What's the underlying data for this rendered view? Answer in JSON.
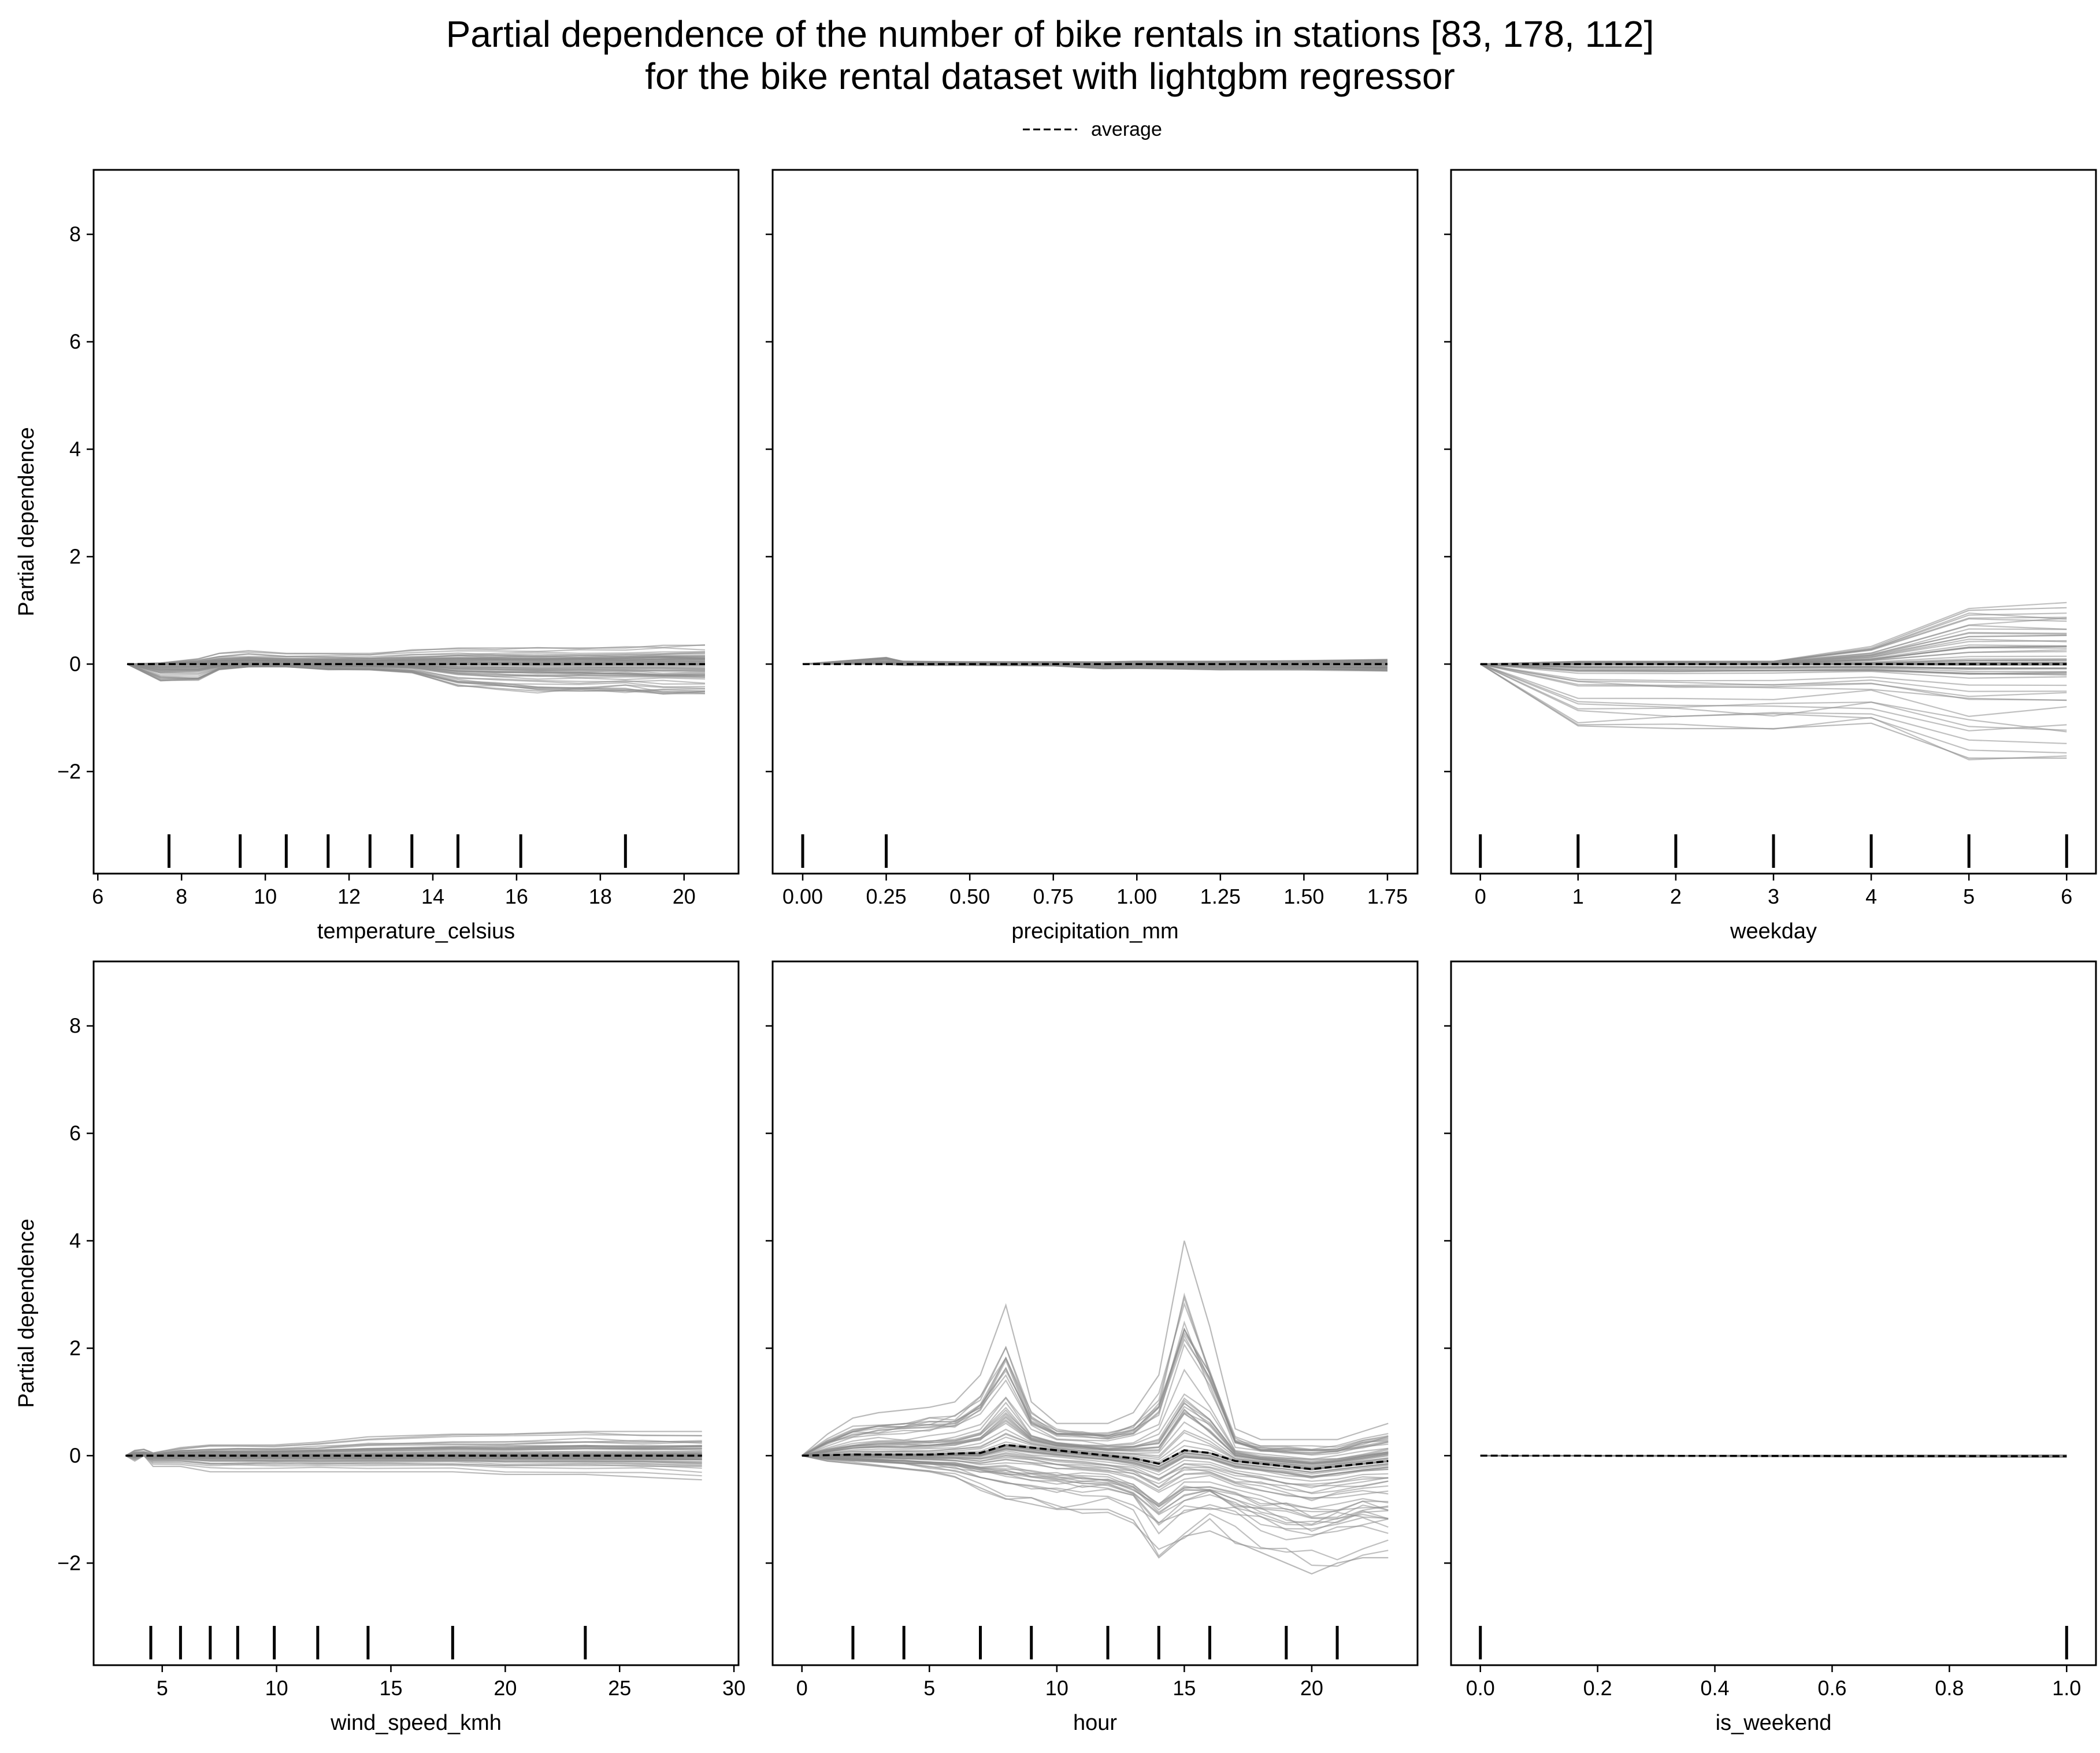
{
  "figure": {
    "title_line1": "Partial dependence of the number of bike rentals in stations [83, 178, 112]",
    "title_line2": "for the bike rental dataset with lightgbm regressor",
    "legend_label": "average"
  },
  "colors": {
    "ice_lines": "#8c8c8c",
    "average_line": "#000000",
    "axes": "#000000",
    "background": "#ffffff"
  },
  "chart_data": [
    {
      "type": "line",
      "xlabel": "temperature_celsius",
      "ylabel": "Partial dependence",
      "xlim": [
        5.9,
        21.3
      ],
      "ylim": [
        -3.9,
        9.2
      ],
      "xticks": [
        6,
        8,
        10,
        12,
        14,
        16,
        18,
        20
      ],
      "xtick_labels": [
        "6",
        "8",
        "10",
        "12",
        "14",
        "16",
        "18",
        "20"
      ],
      "yticks": [
        -2,
        0,
        2,
        4,
        6,
        8
      ],
      "ytick_labels": [
        "−2",
        "0",
        "2",
        "4",
        "6",
        "8"
      ],
      "show_yticklabels": true,
      "deciles": [
        7.7,
        9.4,
        10.5,
        11.5,
        12.5,
        13.5,
        14.6,
        16.1,
        18.6
      ],
      "x": [
        6.7,
        7.5,
        8.4,
        8.9,
        9.6,
        10.5,
        11.5,
        12.5,
        13.5,
        14.6,
        15.5,
        16.5,
        17.5,
        18.6,
        19.5,
        20.5
      ],
      "average": [
        0,
        0,
        0,
        0,
        0,
        0,
        0,
        0,
        0,
        0,
        0,
        0,
        0,
        0,
        0,
        0
      ],
      "ice_envelope_low": [
        0,
        -0.3,
        -0.3,
        -0.1,
        -0.05,
        -0.05,
        -0.1,
        -0.1,
        -0.15,
        -0.4,
        -0.45,
        -0.5,
        -0.5,
        -0.5,
        -0.55,
        -0.55
      ],
      "ice_envelope_high": [
        0,
        0.02,
        0.1,
        0.2,
        0.25,
        0.2,
        0.2,
        0.2,
        0.25,
        0.3,
        0.3,
        0.3,
        0.3,
        0.3,
        0.35,
        0.35
      ]
    },
    {
      "type": "line",
      "xlabel": "precipitation_mm",
      "ylabel": "",
      "xlim": [
        -0.09,
        1.84
      ],
      "ylim": [
        -3.9,
        9.2
      ],
      "xticks": [
        0,
        0.25,
        0.5,
        0.75,
        1.0,
        1.25,
        1.5,
        1.75
      ],
      "xtick_labels": [
        "0.00",
        "0.25",
        "0.50",
        "0.75",
        "1.00",
        "1.25",
        "1.50",
        "1.75"
      ],
      "yticks": [
        -2,
        0,
        2,
        4,
        6,
        8
      ],
      "ytick_labels": [
        "−2",
        "0",
        "2",
        "4",
        "6",
        "8"
      ],
      "show_yticklabels": false,
      "deciles": [
        0.0,
        0.25
      ],
      "x": [
        0,
        0.25,
        0.3,
        0.5,
        0.75,
        0.9,
        1.0,
        1.25,
        1.5,
        1.75
      ],
      "average": [
        0,
        0,
        0,
        0,
        0,
        0,
        0,
        0,
        0,
        0
      ],
      "ice_envelope_low": [
        0,
        0,
        -0.02,
        -0.02,
        -0.03,
        -0.08,
        -0.08,
        -0.1,
        -0.1,
        -0.12
      ],
      "ice_envelope_high": [
        0,
        0.12,
        0.05,
        0.04,
        0.04,
        0.04,
        0.05,
        0.05,
        0.06,
        0.08
      ]
    },
    {
      "type": "line",
      "xlabel": "weekday",
      "ylabel": "",
      "xlim": [
        -0.3,
        6.3
      ],
      "ylim": [
        -3.9,
        9.2
      ],
      "xticks": [
        0,
        1,
        2,
        3,
        4,
        5,
        6
      ],
      "xtick_labels": [
        "0",
        "1",
        "2",
        "3",
        "4",
        "5",
        "6"
      ],
      "yticks": [
        -2,
        0,
        2,
        4,
        6,
        8
      ],
      "ytick_labels": [
        "−2",
        "0",
        "2",
        "4",
        "6",
        "8"
      ],
      "show_yticklabels": false,
      "deciles": [
        0,
        1,
        2,
        3,
        4,
        5,
        6
      ],
      "x": [
        0,
        1,
        2,
        3,
        4,
        5,
        6
      ],
      "average": [
        0,
        0,
        0,
        0,
        0,
        0,
        0
      ],
      "ice_envelope_low": [
        0,
        -1.15,
        -1.2,
        -1.2,
        -1.1,
        -1.75,
        -1.75
      ],
      "ice_envelope_high": [
        0,
        0.05,
        0.05,
        0.05,
        0.3,
        1.0,
        1.05
      ]
    },
    {
      "type": "line",
      "xlabel": "wind_speed_kmh",
      "ylabel": "Partial dependence",
      "xlim": [
        2.0,
        30.2
      ],
      "ylim": [
        -3.9,
        9.2
      ],
      "xticks": [
        5,
        10,
        15,
        20,
        25,
        30
      ],
      "xtick_labels": [
        "5",
        "10",
        "15",
        "20",
        "25",
        "30"
      ],
      "yticks": [
        -2,
        0,
        2,
        4,
        6,
        8
      ],
      "ytick_labels": [
        "−2",
        "0",
        "2",
        "4",
        "6",
        "8"
      ],
      "show_yticklabels": true,
      "deciles": [
        4.5,
        5.8,
        7.1,
        8.3,
        9.9,
        11.8,
        14.0,
        17.7,
        23.5
      ],
      "x": [
        3.4,
        3.8,
        4.2,
        4.6,
        5.8,
        7.1,
        8.3,
        9.9,
        11.8,
        14.0,
        17.7,
        20.0,
        23.5,
        26.0,
        28.6
      ],
      "average": [
        0,
        0,
        0,
        0,
        0,
        0,
        0,
        0,
        0,
        0,
        0,
        0,
        0,
        0,
        0
      ],
      "ice_envelope_low": [
        0,
        -0.1,
        0,
        -0.2,
        -0.2,
        -0.3,
        -0.3,
        -0.3,
        -0.3,
        -0.3,
        -0.3,
        -0.35,
        -0.35,
        -0.4,
        -0.45
      ],
      "ice_envelope_high": [
        0,
        0.1,
        0.12,
        0.05,
        0.15,
        0.2,
        0.2,
        0.2,
        0.25,
        0.35,
        0.4,
        0.4,
        0.45,
        0.45,
        0.45
      ]
    },
    {
      "type": "line",
      "xlabel": "hour",
      "ylabel": "",
      "xlim": [
        -1.15,
        24.15
      ],
      "ylim": [
        -3.9,
        9.2
      ],
      "xticks": [
        0,
        5,
        10,
        15,
        20
      ],
      "xtick_labels": [
        "0",
        "5",
        "10",
        "15",
        "20"
      ],
      "yticks": [
        -2,
        0,
        2,
        4,
        6,
        8
      ],
      "ytick_labels": [
        "−2",
        "0",
        "2",
        "4",
        "6",
        "8"
      ],
      "show_yticklabels": false,
      "deciles": [
        2,
        4,
        7,
        9,
        12,
        14,
        16,
        19,
        21
      ],
      "x": [
        0,
        1,
        2,
        3,
        4,
        5,
        6,
        7,
        8,
        9,
        10,
        11,
        12,
        13,
        14,
        15,
        16,
        17,
        18,
        19,
        20,
        21,
        22,
        23
      ],
      "average": [
        0,
        0.01,
        0.02,
        0.02,
        0.02,
        0.02,
        0.04,
        0.05,
        0.2,
        0.15,
        0.1,
        0.05,
        0.0,
        -0.05,
        -0.15,
        0.1,
        0.05,
        -0.1,
        -0.15,
        -0.2,
        -0.25,
        -0.2,
        -0.15,
        -0.1
      ],
      "ice_envelope_low": [
        0,
        -0.1,
        -0.15,
        -0.2,
        -0.25,
        -0.3,
        -0.4,
        -0.6,
        -0.8,
        -0.9,
        -1.0,
        -1.0,
        -1.0,
        -1.2,
        -1.9,
        -1.5,
        -1.4,
        -1.6,
        -1.8,
        -2.0,
        -2.2,
        -2.0,
        -1.9,
        -1.9
      ],
      "ice_envelope_high": [
        0,
        0.4,
        0.7,
        0.8,
        0.85,
        0.9,
        1.0,
        1.5,
        2.8,
        1.0,
        0.6,
        0.6,
        0.6,
        0.8,
        1.5,
        4.0,
        2.4,
        0.5,
        0.3,
        0.3,
        0.3,
        0.3,
        0.45,
        0.6
      ]
    },
    {
      "type": "line",
      "xlabel": "is_weekend",
      "ylabel": "",
      "xlim": [
        -0.05,
        1.05
      ],
      "ylim": [
        -3.9,
        9.2
      ],
      "xticks": [
        0,
        0.2,
        0.4,
        0.6,
        0.8,
        1.0
      ],
      "xtick_labels": [
        "0.0",
        "0.2",
        "0.4",
        "0.6",
        "0.8",
        "1.0"
      ],
      "yticks": [
        -2,
        0,
        2,
        4,
        6,
        8
      ],
      "ytick_labels": [
        "−2",
        "0",
        "2",
        "4",
        "6",
        "8"
      ],
      "show_yticklabels": false,
      "deciles": [
        0,
        1
      ],
      "x": [
        0,
        1
      ],
      "average": [
        0,
        -0.01
      ],
      "ice_envelope_low": [
        0,
        -0.03
      ],
      "ice_envelope_high": [
        0,
        0.01
      ]
    }
  ]
}
